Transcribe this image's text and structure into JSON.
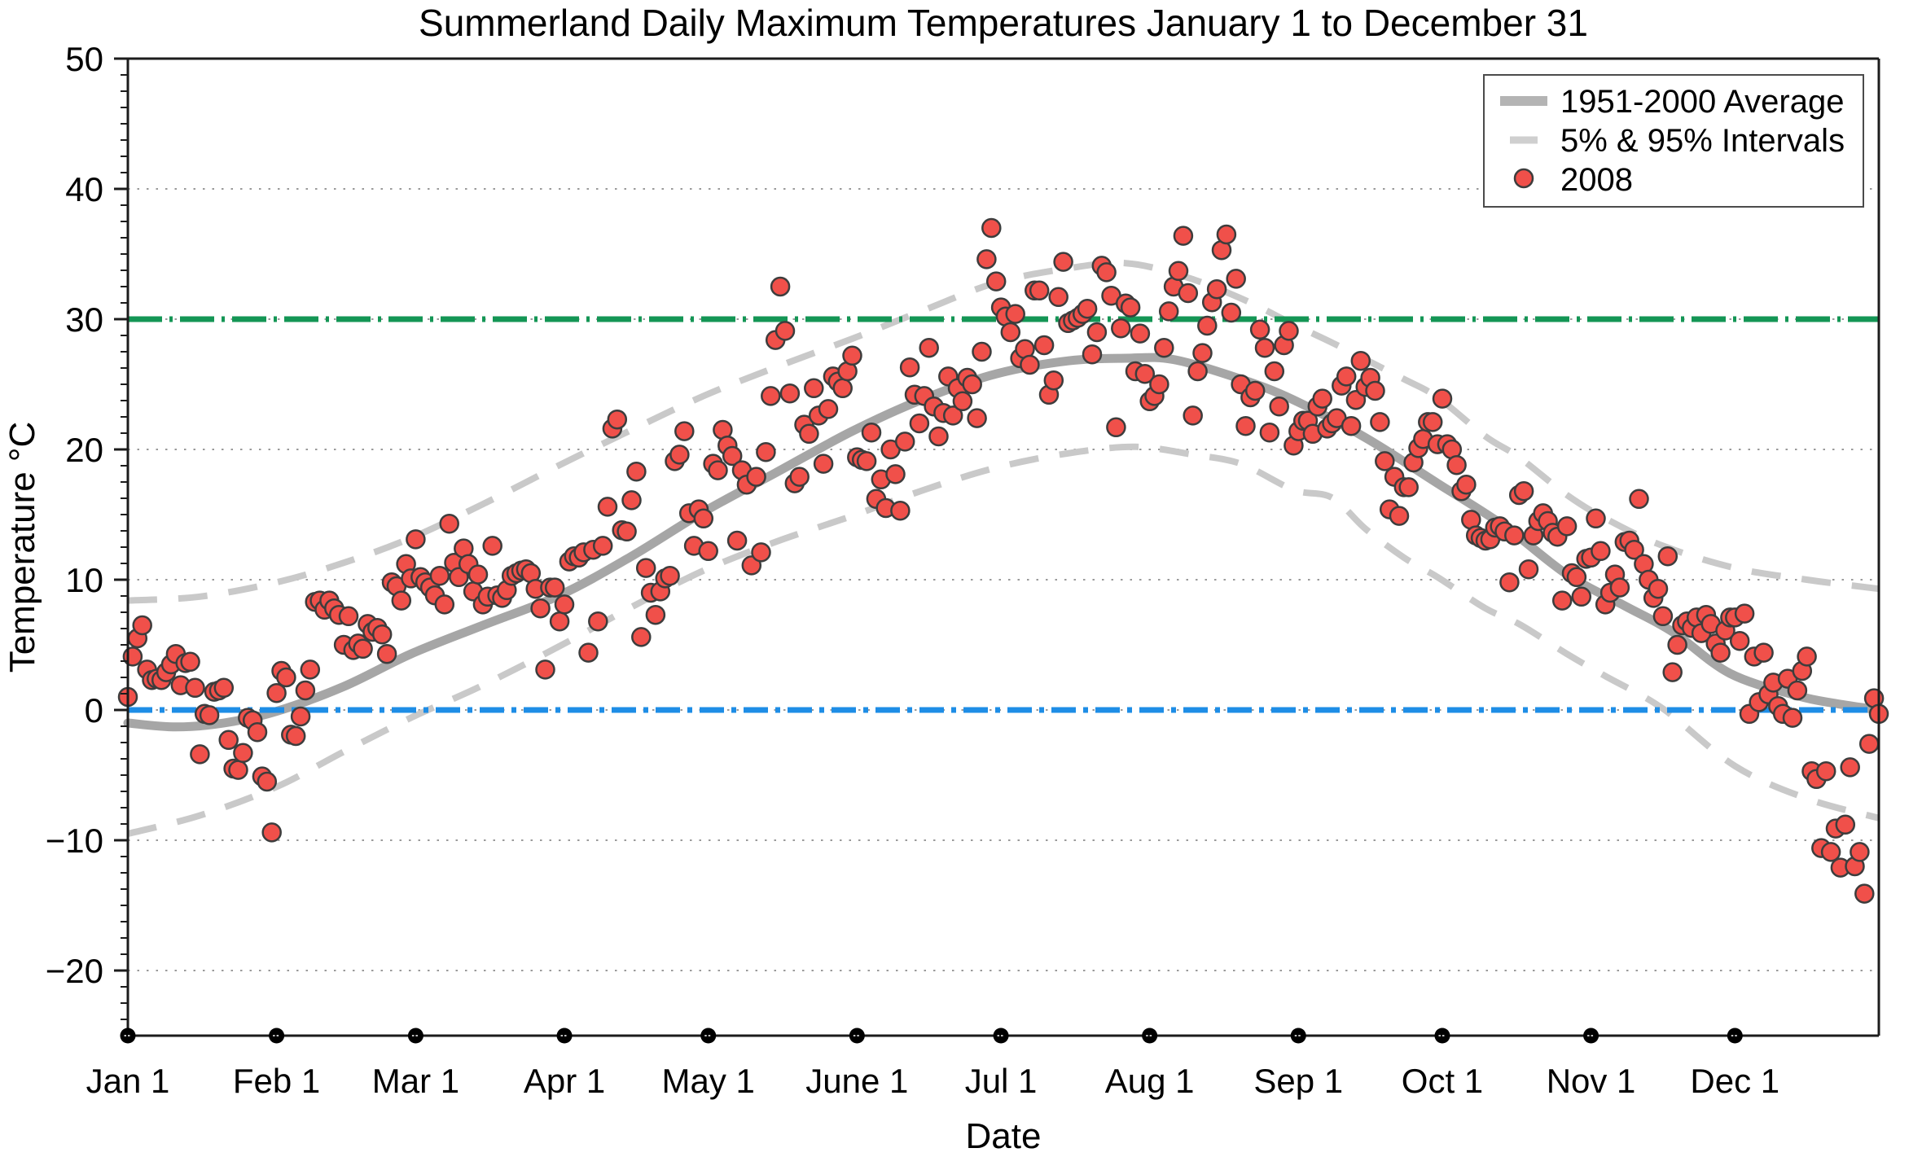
{
  "title": "Summerland Daily Maximum Temperatures January 1 to December 31",
  "axes": {
    "xlabel": "Date",
    "ylabel": "Temperature °C"
  },
  "legend": {
    "items": [
      {
        "label": "1951-2000 Average",
        "swatch": "thick-gray-line"
      },
      {
        "label": "5% & 95% Intervals",
        "swatch": "gray-dash"
      },
      {
        "label": "2008",
        "swatch": "red-dot"
      }
    ]
  },
  "colors": {
    "scatter_fill": "#f0504a",
    "scatter_stroke": "#3d3d3d",
    "average_line": "#a6a6a6",
    "interval_line": "#c9c9c9",
    "reference_30": "#149655",
    "reference_0": "#1e8de6",
    "gridline": "#9a9a9a",
    "frame": "#1c1c1c",
    "legend_avg_swatch": "#b4b4b4",
    "legend_interval_swatch": "#cfcfcf"
  },
  "chart_data": {
    "type": "scatter",
    "title": "Summerland Daily Maximum Temperatures January 1 to December 31",
    "xlabel": "Date",
    "ylabel": "Temperature °C",
    "ylim": [
      -25,
      50
    ],
    "grid": "dotted horizontal at major ticks",
    "legend_position": "top-right",
    "y_major_ticks": [
      50,
      40,
      30,
      20,
      10,
      0,
      -10,
      -20
    ],
    "y_tick_labels": [
      "50",
      "40",
      "30",
      "20",
      "10",
      "0",
      "−10",
      "−20"
    ],
    "y_minor_step": 1.25,
    "grid_y": [
      40,
      30,
      20,
      10,
      0,
      -10,
      -20
    ],
    "days_in_year": 366,
    "x_tick_labels": [
      "Jan 1",
      "Feb 1",
      "Mar 1",
      "Apr 1",
      "May 1",
      "June 1",
      "Jul 1",
      "Aug 1",
      "Sep 1",
      "Oct 1",
      "Nov 1",
      "Dec 1"
    ],
    "month_order": [
      "Jan",
      "Feb",
      "Mar",
      "Apr",
      "May",
      "Jun",
      "Jul",
      "Aug",
      "Sep",
      "Oct",
      "Nov",
      "Dec"
    ],
    "month_start_days": [
      0,
      31,
      60,
      91,
      121,
      152,
      182,
      213,
      244,
      274,
      305,
      335
    ],
    "reference_lines": [
      {
        "y": 30,
        "name": "30C-reference-line",
        "color": "#149655",
        "style": "dash-dot"
      },
      {
        "y": 0,
        "name": "0C-reference-line",
        "color": "#1e8de6",
        "style": "dash-dot"
      }
    ],
    "series": [
      {
        "name": "2008",
        "type": "scatter",
        "color": "#f0504a",
        "monthly_values": {
          "Jan": [
            1.0,
            4.1,
            5.5,
            6.5,
            3.1,
            2.3,
            2.4,
            2.3,
            2.9,
            3.5,
            4.3,
            1.9,
            3.6,
            3.7,
            1.7,
            -3.4,
            -0.3,
            -0.4,
            1.4,
            1.5,
            1.7,
            -2.3,
            -4.5,
            -4.6,
            -3.3,
            -0.6,
            -0.8,
            -1.7,
            -5.1,
            -5.5,
            -9.4
          ],
          "Feb": [
            1.3,
            3.0,
            2.5,
            -1.9,
            -2.0,
            -0.5,
            1.5,
            3.1,
            8.3,
            8.4,
            7.7,
            8.4,
            7.8,
            7.3,
            5.0,
            7.2,
            4.6,
            5.1,
            4.7,
            6.6,
            6.0,
            6.3,
            5.8,
            4.3,
            9.8,
            9.5,
            8.4,
            11.2,
            10.1
          ],
          "Mar": [
            13.1,
            10.2,
            9.8,
            9.4,
            8.8,
            10.3,
            8.1,
            14.3,
            11.3,
            10.2,
            12.4,
            11.2,
            9.1,
            10.4,
            8.1,
            8.7,
            12.6,
            8.8,
            8.6,
            9.2,
            10.3,
            10.5,
            10.7,
            10.8,
            10.5,
            9.3,
            7.8,
            3.1,
            9.4,
            9.4,
            6.8
          ],
          "Apr": [
            8.1,
            11.4,
            11.8,
            11.7,
            12.1,
            4.4,
            12.3,
            6.8,
            12.6,
            15.6,
            21.6,
            22.3,
            13.8,
            13.7,
            16.1,
            18.3,
            5.6,
            10.9,
            9.0,
            7.3,
            9.1,
            10.1,
            10.3,
            19.1,
            19.6,
            21.4,
            15.1,
            12.6,
            15.4,
            14.7
          ],
          "May": [
            12.2,
            18.9,
            18.4,
            21.5,
            20.3,
            19.5,
            13.0,
            18.4,
            17.3,
            11.1,
            17.9,
            12.1,
            19.8,
            24.1,
            28.4,
            32.5,
            29.1,
            24.3,
            17.4,
            17.9,
            21.9,
            21.2,
            24.7,
            22.6,
            18.9,
            23.1,
            25.6,
            25.2,
            24.7,
            26.0,
            27.2
          ],
          "Jun": [
            19.4,
            19.2,
            19.1,
            21.3,
            16.2,
            17.7,
            15.5,
            20.0,
            18.1,
            15.3,
            20.6,
            26.3,
            24.2,
            22.0,
            24.1,
            27.8,
            23.3,
            21.0,
            22.8,
            25.6,
            22.6,
            24.7,
            23.7,
            25.5,
            25.0,
            22.4,
            27.5,
            34.6,
            37.0,
            32.9
          ],
          "Jul": [
            30.9,
            30.2,
            29.0,
            30.4,
            27.0,
            27.7,
            26.5,
            32.2,
            32.2,
            28.0,
            24.2,
            25.3,
            31.7,
            34.4,
            29.7,
            29.9,
            30.1,
            30.4,
            30.8,
            27.3,
            29.0,
            34.1,
            33.6,
            31.8,
            21.7,
            29.3,
            31.2,
            30.9,
            26.0,
            28.9,
            25.8
          ],
          "Aug": [
            23.7,
            24.1,
            25.0,
            27.8,
            30.6,
            32.5,
            33.7,
            36.4,
            32.0,
            22.6,
            26.0,
            27.4,
            29.5,
            31.3,
            32.3,
            35.3,
            36.5,
            30.5,
            33.1,
            25.0,
            21.8,
            24.0,
            24.5,
            29.2,
            27.8,
            21.3,
            26.0,
            23.3,
            28.0,
            29.1,
            20.3
          ],
          "Sep": [
            21.4,
            22.2,
            22.2,
            21.2,
            23.3,
            23.9,
            21.6,
            22.0,
            22.4,
            24.9,
            25.6,
            21.8,
            23.8,
            26.8,
            24.8,
            25.5,
            24.5,
            22.1,
            19.1,
            15.4,
            17.9,
            14.9,
            17.1,
            17.1,
            19.0,
            20.1,
            20.8,
            22.1,
            22.1,
            20.4
          ],
          "Oct": [
            23.9,
            20.4,
            20.0,
            18.8,
            16.8,
            17.3,
            14.6,
            13.4,
            13.2,
            13.0,
            13.1,
            14.0,
            14.1,
            13.7,
            9.8,
            13.4,
            16.5,
            16.8,
            10.8,
            13.4,
            14.5,
            15.1,
            14.5,
            13.6,
            13.3,
            8.4,
            14.1,
            10.5,
            10.2,
            8.7,
            11.6
          ],
          "Nov": [
            11.7,
            14.7,
            12.2,
            8.1,
            9.0,
            10.4,
            9.4,
            12.9,
            13.0,
            12.3,
            16.2,
            11.2,
            10.0,
            8.6,
            9.3,
            7.2,
            11.8,
            2.9,
            5.0,
            6.5,
            6.8,
            6.3,
            7.1,
            5.9,
            7.3,
            6.6,
            5.1,
            4.4,
            6.1,
            7.1
          ],
          "Dec": [
            7.1,
            5.3,
            7.4,
            -0.3,
            4.1,
            0.6,
            4.4,
            1.2,
            2.1,
            0.3,
            -0.3,
            2.4,
            -0.6,
            1.5,
            3.0,
            4.1,
            -4.7,
            -5.3,
            -10.6,
            -4.7,
            -10.9,
            -9.1,
            -12.1,
            -8.8,
            -4.4,
            -12.0,
            -10.9,
            -14.1,
            -2.6,
            0.9,
            -0.3
          ]
        }
      },
      {
        "name": "1951-2000 Average",
        "type": "line",
        "color": "#a6a6a6",
        "waypoints": [
          [
            0,
            -1.0
          ],
          [
            10,
            -1.3
          ],
          [
            20,
            -1.0
          ],
          [
            31,
            -0.1
          ],
          [
            45,
            1.8
          ],
          [
            59,
            4.3
          ],
          [
            74,
            6.5
          ],
          [
            90,
            8.8
          ],
          [
            105,
            11.8
          ],
          [
            120,
            15.2
          ],
          [
            135,
            18.2
          ],
          [
            151,
            21.4
          ],
          [
            166,
            23.9
          ],
          [
            181,
            25.8
          ],
          [
            196,
            26.8
          ],
          [
            208,
            27.0
          ],
          [
            218,
            26.9
          ],
          [
            232,
            25.4
          ],
          [
            243,
            23.8
          ],
          [
            258,
            20.9
          ],
          [
            273,
            17.4
          ],
          [
            287,
            14.1
          ],
          [
            300,
            10.4
          ],
          [
            312,
            8.0
          ],
          [
            322,
            6.0
          ],
          [
            334,
            2.8
          ],
          [
            348,
            1.1
          ],
          [
            356,
            0.5
          ],
          [
            365,
            0.0
          ]
        ]
      },
      {
        "name": "95% Interval",
        "type": "dashed-line",
        "color": "#c9c9c9",
        "waypoints": [
          [
            0,
            8.4
          ],
          [
            15,
            8.7
          ],
          [
            31,
            9.8
          ],
          [
            45,
            11.3
          ],
          [
            59,
            13.2
          ],
          [
            74,
            15.8
          ],
          [
            90,
            18.8
          ],
          [
            105,
            21.5
          ],
          [
            120,
            24.1
          ],
          [
            135,
            26.3
          ],
          [
            151,
            28.5
          ],
          [
            166,
            30.7
          ],
          [
            181,
            32.8
          ],
          [
            196,
            33.9
          ],
          [
            208,
            34.3
          ],
          [
            220,
            33.3
          ],
          [
            232,
            31.6
          ],
          [
            243,
            29.6
          ],
          [
            251,
            28.2
          ],
          [
            258,
            26.9
          ],
          [
            266,
            25.4
          ],
          [
            273,
            24.0
          ],
          [
            283,
            21.0
          ],
          [
            290,
            19.4
          ],
          [
            300,
            16.5
          ],
          [
            308,
            14.7
          ],
          [
            320,
            12.6
          ],
          [
            335,
            10.9
          ],
          [
            350,
            10.0
          ],
          [
            365,
            9.3
          ]
        ]
      },
      {
        "name": "5% Interval",
        "type": "dashed-line",
        "color": "#c9c9c9",
        "waypoints": [
          [
            0,
            -9.5
          ],
          [
            15,
            -8.1
          ],
          [
            31,
            -5.9
          ],
          [
            45,
            -3.2
          ],
          [
            59,
            -0.6
          ],
          [
            74,
            1.9
          ],
          [
            90,
            4.9
          ],
          [
            105,
            7.9
          ],
          [
            120,
            10.7
          ],
          [
            135,
            12.9
          ],
          [
            151,
            14.9
          ],
          [
            166,
            16.9
          ],
          [
            181,
            18.6
          ],
          [
            196,
            19.7
          ],
          [
            210,
            20.2
          ],
          [
            222,
            19.6
          ],
          [
            232,
            18.9
          ],
          [
            243,
            16.9
          ],
          [
            251,
            16.3
          ],
          [
            258,
            13.9
          ],
          [
            266,
            11.7
          ],
          [
            273,
            10.2
          ],
          [
            283,
            7.8
          ],
          [
            290,
            6.6
          ],
          [
            300,
            4.3
          ],
          [
            308,
            2.6
          ],
          [
            320,
            0.1
          ],
          [
            335,
            -4.3
          ],
          [
            350,
            -6.8
          ],
          [
            365,
            -8.3
          ]
        ]
      }
    ]
  }
}
